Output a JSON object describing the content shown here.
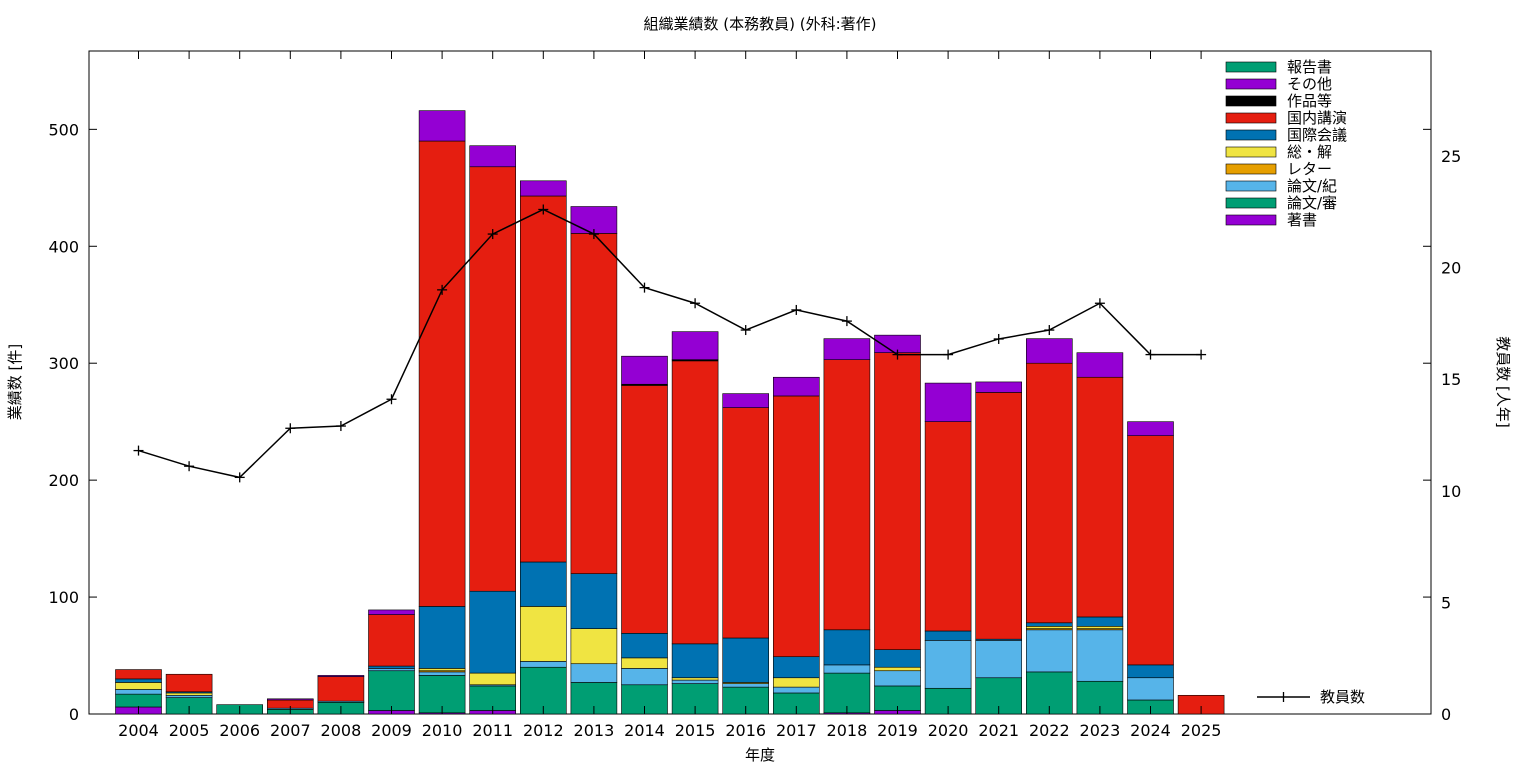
{
  "chart_data": {
    "type": "bar",
    "stacked": true,
    "title": "組織業績数 (本務教員) (外科:著作)",
    "xlabel": "年度",
    "ylabel": "業績数 [件]",
    "y2label": "教員数 [人年]",
    "ylim": [
      0,
      567
    ],
    "y2lim": [
      0,
      29.7
    ],
    "yticks": [
      0,
      100,
      200,
      300,
      400,
      500
    ],
    "y2ticks": [
      0,
      5,
      10,
      15,
      20,
      25
    ],
    "legend_position": "top-right",
    "grid": false,
    "categories": [
      "2004",
      "2005",
      "2006",
      "2007",
      "2008",
      "2009",
      "2010",
      "2011",
      "2012",
      "2013",
      "2014",
      "2015",
      "2016",
      "2017",
      "2018",
      "2019",
      "2020",
      "2021",
      "2022",
      "2023",
      "2024",
      "2025"
    ],
    "series": [
      {
        "name": "著書",
        "color": "#9400d3",
        "values": [
          6,
          0,
          0,
          0,
          0,
          3,
          1,
          3,
          0,
          0,
          0,
          0,
          0,
          0,
          1,
          3,
          0,
          0,
          0,
          0,
          0,
          0
        ]
      },
      {
        "name": "論文/審",
        "color": "#009e73",
        "values": [
          11,
          14,
          8,
          4,
          10,
          34,
          32,
          21,
          40,
          27,
          25,
          26,
          23,
          18,
          34,
          21,
          22,
          31,
          36,
          28,
          12,
          0
        ]
      },
      {
        "name": "論文/紀",
        "color": "#56b4e9",
        "values": [
          4,
          2,
          0,
          1,
          1,
          2,
          3,
          1,
          5,
          16,
          14,
          3,
          3,
          5,
          7,
          13,
          41,
          32,
          36,
          44,
          19,
          0
        ]
      },
      {
        "name": "レター",
        "color": "#e69f00",
        "values": [
          0,
          0,
          0,
          0,
          0,
          0,
          1,
          0,
          0,
          0,
          0,
          0,
          0,
          0,
          0,
          0,
          0,
          0,
          1,
          1,
          0,
          0
        ]
      },
      {
        "name": "総・解",
        "color": "#f0e442",
        "values": [
          6,
          2,
          0,
          0,
          0,
          0,
          2,
          10,
          47,
          30,
          9,
          2,
          1,
          8,
          0,
          3,
          0,
          0,
          2,
          2,
          0,
          0
        ]
      },
      {
        "name": "国際会議",
        "color": "#0072b2",
        "values": [
          3,
          1,
          0,
          0,
          0,
          2,
          53,
          70,
          38,
          47,
          21,
          29,
          38,
          18,
          30,
          15,
          8,
          1,
          3,
          8,
          11,
          0
        ]
      },
      {
        "name": "国内講演",
        "color": "#e51e10",
        "values": [
          8,
          15,
          0,
          7,
          21,
          44,
          398,
          363,
          313,
          291,
          212,
          242,
          197,
          223,
          231,
          254,
          179,
          211,
          222,
          205,
          196,
          16
        ]
      },
      {
        "name": "作品等",
        "color": "#000000",
        "values": [
          0,
          0,
          0,
          0,
          0,
          0,
          0,
          0,
          0,
          0,
          1,
          1,
          0,
          0,
          0,
          0,
          0,
          0,
          0,
          0,
          0,
          0
        ]
      },
      {
        "name": "その他",
        "color": "#9400d3",
        "values": [
          0,
          0,
          0,
          1,
          1,
          4,
          26,
          18,
          13,
          23,
          24,
          24,
          12,
          16,
          18,
          15,
          33,
          9,
          21,
          21,
          12,
          0
        ]
      },
      {
        "name": "報告書",
        "color": "#009e73",
        "values": [
          0,
          0,
          0,
          0,
          0,
          0,
          0,
          0,
          0,
          0,
          0,
          0,
          0,
          0,
          0,
          0,
          0,
          0,
          0,
          0,
          0,
          0
        ]
      }
    ],
    "line": {
      "name": "教員数",
      "color": "#000000",
      "axis": "y2",
      "values": [
        11.8,
        11.1,
        10.6,
        12.8,
        12.9,
        14.1,
        19.0,
        21.5,
        22.6,
        21.5,
        19.1,
        18.4,
        17.2,
        18.1,
        17.6,
        16.1,
        16.1,
        16.8,
        17.2,
        18.4,
        16.1,
        16.1
      ]
    }
  }
}
